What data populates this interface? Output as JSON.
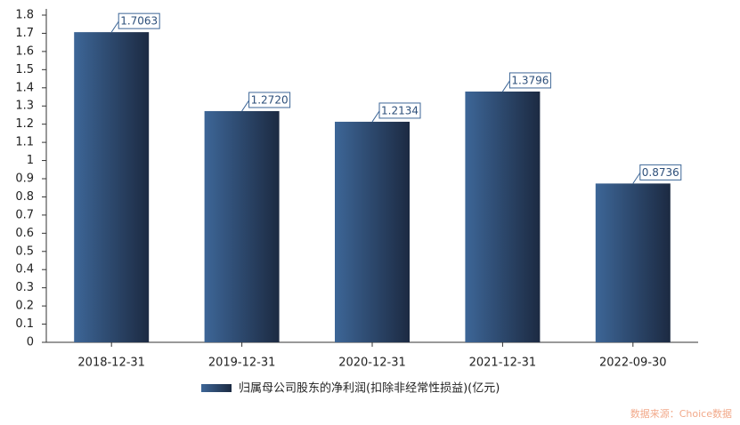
{
  "chart_data": {
    "type": "bar",
    "series_name": "归属母公司股东的净利润(扣除非经常性损益)(亿元)",
    "categories": [
      "2018-12-31",
      "2019-12-31",
      "2020-12-31",
      "2021-12-31",
      "2022-09-30"
    ],
    "values": [
      1.7063,
      1.272,
      1.2134,
      1.3796,
      0.8736
    ],
    "value_labels": [
      "1.7063",
      "1.2720",
      "1.2134",
      "1.3796",
      "0.8736"
    ],
    "gradient": [
      "#3d6697",
      "#1c2a42"
    ],
    "ylim": [
      0,
      1.8
    ],
    "yticks": [
      0,
      0.1,
      0.2,
      0.3,
      0.4,
      0.5,
      0.6,
      0.7,
      0.8,
      0.9,
      1,
      1.1,
      1.2,
      1.3,
      1.4,
      1.5,
      1.6,
      1.7,
      1.8
    ],
    "grid": false,
    "legend": "bottom",
    "source": "数据来源：Choice数据"
  }
}
